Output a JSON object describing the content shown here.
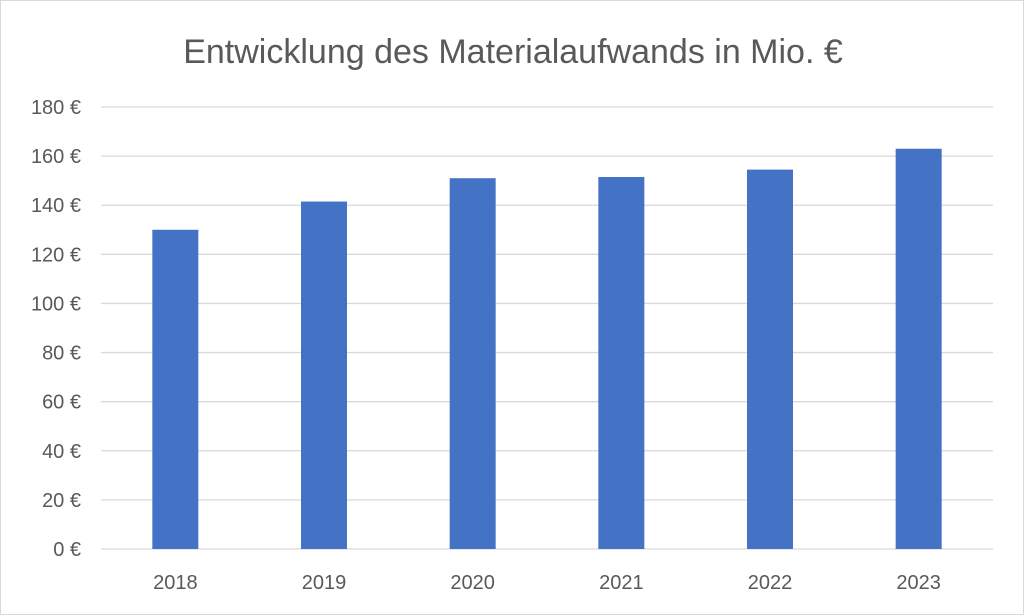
{
  "chart_data": {
    "type": "bar",
    "title": "Entwicklung des Materialaufwands in Mio. €",
    "xlabel": "",
    "ylabel": "",
    "categories": [
      "2018",
      "2019",
      "2020",
      "2021",
      "2022",
      "2023"
    ],
    "values": [
      130,
      141.5,
      151,
      151.5,
      154.5,
      163
    ],
    "ylim": [
      0,
      180
    ],
    "ytick_step": 20,
    "ytick_suffix": " €",
    "grid": true,
    "legend": "none",
    "bar_color": "#4472C4",
    "grid_color": "#d9d9d9",
    "text_color": "#595959"
  }
}
